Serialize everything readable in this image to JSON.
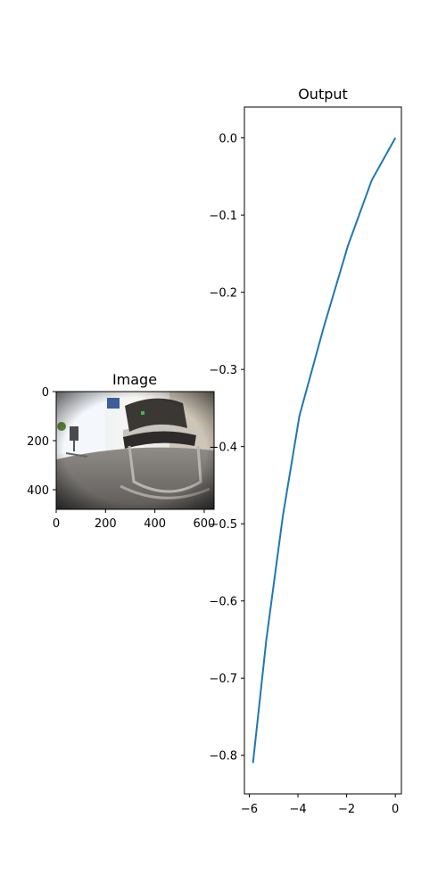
{
  "image_panel": {
    "title": "Image",
    "x_ticks": [
      "0",
      "200",
      "400",
      "600"
    ],
    "y_ticks": [
      "0",
      "200",
      "400"
    ],
    "x_tick_values": [
      0,
      200,
      400,
      600
    ],
    "y_tick_values": [
      0,
      200,
      400
    ],
    "xlim": [
      0,
      640
    ],
    "ylim": [
      480,
      0
    ],
    "scene": "fisheye photo of an office room with chairs and a table"
  },
  "chart_data": {
    "type": "line",
    "title": "Output",
    "xlabel": "",
    "ylabel": "",
    "xlim": [
      -6.2,
      0.25
    ],
    "ylim": [
      -0.85,
      0.04
    ],
    "x_ticks": [
      -6,
      -4,
      -2,
      0
    ],
    "y_ticks": [
      0.0,
      -0.1,
      -0.2,
      -0.3,
      -0.4,
      -0.5,
      -0.6,
      -0.7,
      -0.8
    ],
    "x_tick_labels": [
      "−6",
      "−4",
      "−2",
      "0"
    ],
    "y_tick_labels": [
      "0.0",
      "−0.1",
      "−0.2",
      "−0.3",
      "−0.4",
      "−0.5",
      "−0.6",
      "−0.7",
      "−0.8"
    ],
    "grid": false,
    "series": [
      {
        "color": "#1f77b4",
        "x": [
          0.0,
          -0.97,
          -1.95,
          -2.94,
          -3.94,
          -4.62,
          -5.3,
          -5.85
        ],
        "y": [
          0.0,
          -0.055,
          -0.14,
          -0.245,
          -0.36,
          -0.49,
          -0.65,
          -0.81
        ]
      }
    ]
  }
}
